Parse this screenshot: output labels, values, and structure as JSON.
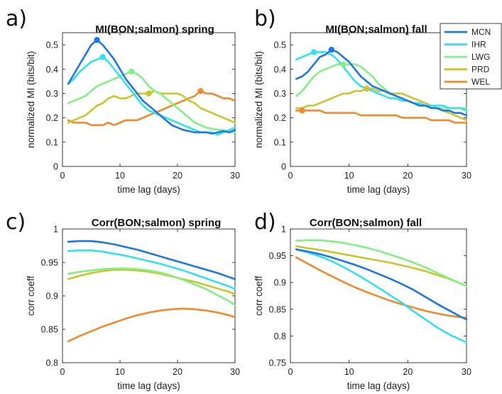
{
  "colors": {
    "MCN": "#1f77e0",
    "IHR": "#33e0f0",
    "LWG": "#84ef84",
    "PRD": "#c8c62a",
    "WEL": "#f08a2c"
  },
  "legend": {
    "placement": "right-of-panel-b",
    "entries": [
      "MCN",
      "IHR",
      "LWG",
      "PRD",
      "WEL"
    ]
  },
  "chart_data": [
    {
      "panel_label": "a)",
      "type": "line",
      "title": "MI(BON;salmon) spring",
      "xlabel": "time lag (days)",
      "ylabel": "normalized MI (bits/bit)",
      "xlim": [
        0,
        30
      ],
      "ylim": [
        0,
        0.55
      ],
      "xticks": [
        "0",
        "10",
        "20",
        "30"
      ],
      "yticks": [
        "0",
        "0.1",
        "0.2",
        "0.3",
        "0.4",
        "0.5"
      ],
      "x": [
        1,
        2,
        3,
        4,
        5,
        6,
        7,
        8,
        9,
        10,
        11,
        12,
        13,
        14,
        15,
        16,
        17,
        18,
        19,
        20,
        21,
        22,
        23,
        24,
        25,
        26,
        27,
        28,
        29,
        30
      ],
      "series": [
        {
          "name": "MCN",
          "values": [
            0.34,
            0.38,
            0.42,
            0.46,
            0.5,
            0.52,
            0.5,
            0.47,
            0.44,
            0.4,
            0.36,
            0.33,
            0.3,
            0.27,
            0.25,
            0.23,
            0.21,
            0.19,
            0.17,
            0.16,
            0.15,
            0.145,
            0.14,
            0.14,
            0.14,
            0.135,
            0.14,
            0.145,
            0.14,
            0.15
          ],
          "peak": [
            6,
            0.52
          ]
        },
        {
          "name": "IHR",
          "values": [
            0.34,
            0.36,
            0.39,
            0.41,
            0.43,
            0.44,
            0.45,
            0.43,
            0.4,
            0.37,
            0.34,
            0.31,
            0.28,
            0.25,
            0.23,
            0.22,
            0.21,
            0.2,
            0.19,
            0.18,
            0.17,
            0.16,
            0.15,
            0.14,
            0.14,
            0.14,
            0.13,
            0.14,
            0.15,
            0.16
          ],
          "peak": [
            7,
            0.45
          ]
        },
        {
          "name": "LWG",
          "values": [
            0.26,
            0.27,
            0.28,
            0.29,
            0.31,
            0.33,
            0.34,
            0.35,
            0.36,
            0.37,
            0.38,
            0.39,
            0.38,
            0.36,
            0.33,
            0.31,
            0.3,
            0.28,
            0.26,
            0.24,
            0.22,
            0.2,
            0.18,
            0.17,
            0.16,
            0.155,
            0.15,
            0.15,
            0.14,
            0.14
          ],
          "peak": [
            12,
            0.39
          ]
        },
        {
          "name": "PRD",
          "values": [
            0.18,
            0.19,
            0.2,
            0.21,
            0.23,
            0.25,
            0.26,
            0.28,
            0.29,
            0.28,
            0.28,
            0.29,
            0.3,
            0.3,
            0.3,
            0.31,
            0.3,
            0.3,
            0.3,
            0.3,
            0.29,
            0.27,
            0.26,
            0.24,
            0.23,
            0.22,
            0.21,
            0.2,
            0.19,
            0.18
          ],
          "peak": [
            15,
            0.3
          ]
        },
        {
          "name": "WEL",
          "values": [
            0.19,
            0.18,
            0.18,
            0.18,
            0.17,
            0.17,
            0.17,
            0.18,
            0.17,
            0.18,
            0.19,
            0.19,
            0.19,
            0.2,
            0.21,
            0.22,
            0.23,
            0.24,
            0.25,
            0.26,
            0.27,
            0.28,
            0.29,
            0.31,
            0.3,
            0.3,
            0.29,
            0.28,
            0.28,
            0.27
          ],
          "peak": [
            24,
            0.31
          ]
        }
      ]
    },
    {
      "panel_label": "b)",
      "type": "line",
      "title": "MI(BON;salmon) fall",
      "xlabel": "time lag (days)",
      "ylabel": "normalized MI (bits/bit)",
      "xlim": [
        0,
        30
      ],
      "ylim": [
        0,
        0.55
      ],
      "xticks": [
        "0",
        "10",
        "20",
        "30"
      ],
      "yticks": [
        "0",
        "0.1",
        "0.2",
        "0.3",
        "0.4",
        "0.5"
      ],
      "x": [
        1,
        2,
        3,
        4,
        5,
        6,
        7,
        8,
        9,
        10,
        11,
        12,
        13,
        14,
        15,
        16,
        17,
        18,
        19,
        20,
        21,
        22,
        23,
        24,
        25,
        26,
        27,
        28,
        29,
        30
      ],
      "series": [
        {
          "name": "MCN",
          "values": [
            0.36,
            0.37,
            0.39,
            0.42,
            0.45,
            0.46,
            0.48,
            0.47,
            0.45,
            0.43,
            0.4,
            0.37,
            0.35,
            0.33,
            0.32,
            0.31,
            0.3,
            0.29,
            0.28,
            0.27,
            0.26,
            0.25,
            0.25,
            0.24,
            0.24,
            0.23,
            0.23,
            0.22,
            0.22,
            0.21
          ],
          "peak": [
            7,
            0.48
          ]
        },
        {
          "name": "IHR",
          "values": [
            0.44,
            0.45,
            0.46,
            0.47,
            0.47,
            0.47,
            0.46,
            0.44,
            0.41,
            0.38,
            0.35,
            0.33,
            0.32,
            0.31,
            0.3,
            0.29,
            0.28,
            0.28,
            0.27,
            0.27,
            0.26,
            0.26,
            0.25,
            0.25,
            0.25,
            0.25,
            0.24,
            0.24,
            0.24,
            0.23
          ],
          "peak": [
            4,
            0.47
          ]
        },
        {
          "name": "LWG",
          "values": [
            0.29,
            0.31,
            0.34,
            0.37,
            0.39,
            0.4,
            0.41,
            0.42,
            0.42,
            0.42,
            0.42,
            0.41,
            0.39,
            0.37,
            0.34,
            0.32,
            0.3,
            0.29,
            0.28,
            0.27,
            0.26,
            0.26,
            0.25,
            0.25,
            0.24,
            0.24,
            0.24,
            0.24,
            0.24,
            0.24
          ],
          "peak": [
            9,
            0.42
          ]
        },
        {
          "name": "PRD",
          "values": [
            0.24,
            0.24,
            0.25,
            0.25,
            0.26,
            0.27,
            0.28,
            0.29,
            0.3,
            0.3,
            0.31,
            0.31,
            0.32,
            0.32,
            0.31,
            0.31,
            0.3,
            0.3,
            0.3,
            0.29,
            0.28,
            0.27,
            0.26,
            0.25,
            0.24,
            0.23,
            0.22,
            0.21,
            0.2,
            0.19
          ],
          "peak": [
            13,
            0.32
          ]
        },
        {
          "name": "WEL",
          "values": [
            0.23,
            0.23,
            0.23,
            0.23,
            0.23,
            0.22,
            0.22,
            0.22,
            0.22,
            0.22,
            0.22,
            0.21,
            0.21,
            0.21,
            0.21,
            0.21,
            0.21,
            0.21,
            0.2,
            0.2,
            0.2,
            0.2,
            0.2,
            0.19,
            0.19,
            0.19,
            0.19,
            0.18,
            0.18,
            0.18
          ],
          "peak": [
            2,
            0.23
          ]
        }
      ]
    },
    {
      "panel_label": "c)",
      "type": "line",
      "title": "Corr(BON;salmon) spring",
      "xlabel": "time lag (days)",
      "ylabel": "corr coeff",
      "xlim": [
        0,
        30
      ],
      "ylim": [
        0.8,
        1.0
      ],
      "xticks": [
        "0",
        "10",
        "20",
        "30"
      ],
      "yticks": [
        "0.8",
        "0.85",
        "0.9",
        "0.95",
        "1"
      ],
      "x": [
        1,
        3,
        5,
        7,
        9,
        11,
        13,
        15,
        17,
        19,
        21,
        23,
        25,
        27,
        29,
        30
      ],
      "series": [
        {
          "name": "MCN",
          "values": [
            0.981,
            0.982,
            0.982,
            0.98,
            0.977,
            0.973,
            0.969,
            0.964,
            0.959,
            0.954,
            0.949,
            0.944,
            0.939,
            0.934,
            0.928,
            0.925
          ]
        },
        {
          "name": "IHR",
          "values": [
            0.967,
            0.968,
            0.968,
            0.966,
            0.963,
            0.96,
            0.956,
            0.952,
            0.948,
            0.943,
            0.938,
            0.932,
            0.926,
            0.92,
            0.914,
            0.91
          ]
        },
        {
          "name": "LWG",
          "values": [
            0.933,
            0.936,
            0.938,
            0.94,
            0.941,
            0.941,
            0.94,
            0.938,
            0.935,
            0.93,
            0.924,
            0.917,
            0.91,
            0.901,
            0.892,
            0.886
          ]
        },
        {
          "name": "PRD",
          "values": [
            0.925,
            0.93,
            0.934,
            0.937,
            0.939,
            0.939,
            0.938,
            0.936,
            0.933,
            0.929,
            0.925,
            0.921,
            0.916,
            0.911,
            0.906,
            0.902
          ]
        },
        {
          "name": "WEL",
          "values": [
            0.832,
            0.84,
            0.847,
            0.854,
            0.86,
            0.866,
            0.871,
            0.875,
            0.878,
            0.88,
            0.881,
            0.88,
            0.878,
            0.875,
            0.871,
            0.868
          ]
        }
      ]
    },
    {
      "panel_label": "d)",
      "type": "line",
      "title": "Corr(BON;salmon) fall",
      "xlabel": "time lag (days)",
      "ylabel": "corr coeff",
      "xlim": [
        0,
        30
      ],
      "ylim": [
        0.75,
        1.0
      ],
      "xticks": [
        "0",
        "10",
        "20",
        "30"
      ],
      "yticks": [
        "0.75",
        "0.8",
        "0.85",
        "0.9",
        "0.95",
        "1"
      ],
      "x": [
        1,
        3,
        5,
        7,
        9,
        11,
        13,
        15,
        17,
        19,
        21,
        23,
        25,
        27,
        29,
        30
      ],
      "series": [
        {
          "name": "MCN",
          "values": [
            0.962,
            0.958,
            0.953,
            0.947,
            0.94,
            0.933,
            0.925,
            0.916,
            0.907,
            0.897,
            0.886,
            0.873,
            0.86,
            0.848,
            0.836,
            0.831
          ]
        },
        {
          "name": "IHR",
          "values": [
            0.962,
            0.956,
            0.949,
            0.94,
            0.929,
            0.917,
            0.904,
            0.89,
            0.876,
            0.862,
            0.846,
            0.831,
            0.816,
            0.803,
            0.793,
            0.788
          ]
        },
        {
          "name": "LWG",
          "values": [
            0.978,
            0.979,
            0.979,
            0.977,
            0.974,
            0.97,
            0.965,
            0.959,
            0.952,
            0.945,
            0.937,
            0.928,
            0.918,
            0.908,
            0.898,
            0.893
          ]
        },
        {
          "name": "PRD",
          "values": [
            0.968,
            0.964,
            0.961,
            0.957,
            0.953,
            0.949,
            0.945,
            0.941,
            0.937,
            0.932,
            0.927,
            0.921,
            0.914,
            0.907,
            0.898,
            0.893
          ]
        },
        {
          "name": "WEL",
          "values": [
            0.947,
            0.935,
            0.923,
            0.912,
            0.901,
            0.891,
            0.882,
            0.874,
            0.866,
            0.859,
            0.853,
            0.847,
            0.842,
            0.838,
            0.835,
            0.834
          ]
        }
      ]
    }
  ]
}
